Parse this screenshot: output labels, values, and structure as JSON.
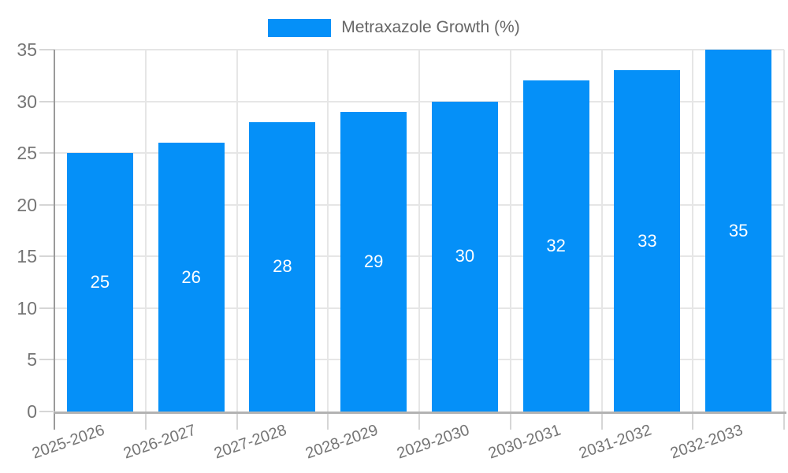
{
  "legend": {
    "position": "top-center"
  },
  "chart_data": {
    "type": "bar",
    "title": "",
    "xlabel": "",
    "ylabel": "",
    "categories": [
      "2025-2026",
      "2026-2027",
      "2027-2028",
      "2028-2029",
      "2029-2030",
      "2030-2031",
      "2031-2032",
      "2032-2033"
    ],
    "series": [
      {
        "name": "Metraxazole Growth (%)",
        "values": [
          25,
          26,
          28,
          29,
          30,
          32,
          33,
          35
        ]
      }
    ],
    "ylim": [
      0,
      35
    ],
    "yticks": [
      0,
      5,
      10,
      15,
      20,
      25,
      30,
      35
    ],
    "grid": "horizontal-and-vertical",
    "legend_position": "top-center",
    "bar_color": "#0590f8",
    "value_labels": "inside-middle",
    "value_label_color": "#ffffff",
    "axis_text_color": "#757575",
    "x_tick_rotation_deg": -19
  }
}
